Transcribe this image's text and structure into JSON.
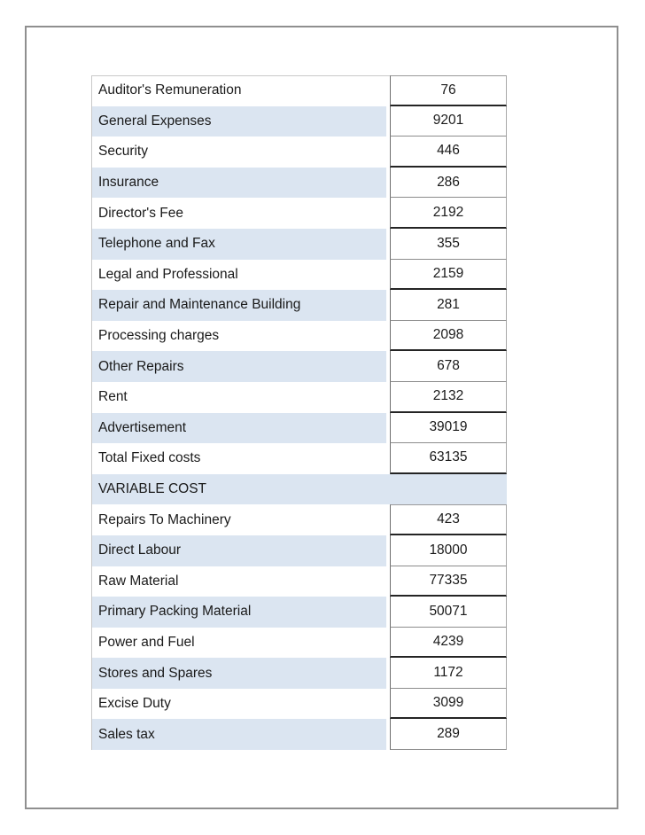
{
  "document": {
    "colors": {
      "row_band": "#dbe5f1",
      "text": "#1a1a1a",
      "frame_border": "#8f8f8f",
      "cell_border_strong": "#242424",
      "cell_border_light": "#8c8c8c"
    },
    "table": {
      "section_header": "VARIABLE COST",
      "rows": [
        {
          "label": "Auditor's Remuneration",
          "value": "76"
        },
        {
          "label": "General Expenses",
          "value": "9201"
        },
        {
          "label": "Security",
          "value": "446"
        },
        {
          "label": "Insurance",
          "value": "286"
        },
        {
          "label": "Director's Fee",
          "value": "2192"
        },
        {
          "label": "Telephone and Fax",
          "value": "355"
        },
        {
          "label": "Legal and Professional",
          "value": "2159"
        },
        {
          "label": "Repair and Maintenance Building",
          "value": "281"
        },
        {
          "label": "Processing charges",
          "value": "2098"
        },
        {
          "label": "Other Repairs",
          "value": "678"
        },
        {
          "label": "Rent",
          "value": "2132"
        },
        {
          "label": "Advertisement",
          "value": "39019"
        },
        {
          "label": "Total Fixed costs",
          "value": "63135"
        },
        {
          "label": "VARIABLE COST",
          "value": null,
          "section": true
        },
        {
          "label": "Repairs To Machinery",
          "value": "423"
        },
        {
          "label": "Direct Labour",
          "value": "18000"
        },
        {
          "label": "Raw Material",
          "value": "77335"
        },
        {
          "label": "Primary Packing Material",
          "value": "50071"
        },
        {
          "label": "Power and Fuel",
          "value": "4239"
        },
        {
          "label": "Stores and Spares",
          "value": "1172"
        },
        {
          "label": "Excise Duty",
          "value": "3099"
        },
        {
          "label": "Sales tax",
          "value": "289"
        }
      ]
    }
  }
}
